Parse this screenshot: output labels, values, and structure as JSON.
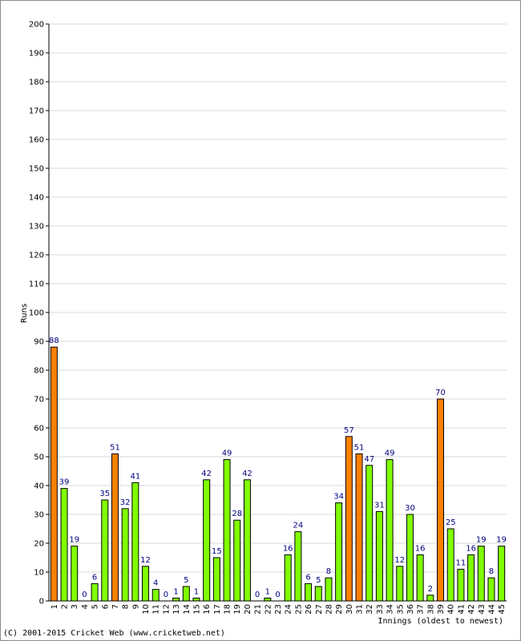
{
  "chart_data": {
    "type": "bar",
    "title": "",
    "xlabel": "Innings (oldest to newest)",
    "ylabel": "Runs",
    "ylim": [
      0,
      200
    ],
    "ytick_step": 10,
    "grid": true,
    "categories": [
      "1",
      "2",
      "3",
      "4",
      "5",
      "6",
      "7",
      "8",
      "9",
      "10",
      "11",
      "12",
      "13",
      "14",
      "15",
      "16",
      "17",
      "18",
      "19",
      "20",
      "21",
      "22",
      "23",
      "24",
      "25",
      "26",
      "27",
      "28",
      "29",
      "30",
      "31",
      "32",
      "33",
      "34",
      "35",
      "36",
      "37",
      "38",
      "39",
      "40",
      "41",
      "42",
      "43",
      "44",
      "45"
    ],
    "values": [
      88,
      39,
      19,
      0,
      6,
      35,
      51,
      32,
      41,
      12,
      4,
      0,
      1,
      5,
      1,
      42,
      15,
      49,
      28,
      42,
      0,
      1,
      0,
      16,
      24,
      6,
      5,
      8,
      34,
      57,
      51,
      47,
      31,
      49,
      12,
      30,
      16,
      2,
      70,
      25,
      11,
      16,
      19,
      8,
      19
    ],
    "highlight_threshold": 50,
    "colors": {
      "normal": "#80ff00",
      "highlight": "#ff8000",
      "bar_stroke": "#000000",
      "grid": "#d8d8d8",
      "axis": "#000000",
      "data_label": "#000080"
    }
  },
  "footer": {
    "copyright": "(C) 2001-2015 Cricket Web (www.cricketweb.net)"
  }
}
